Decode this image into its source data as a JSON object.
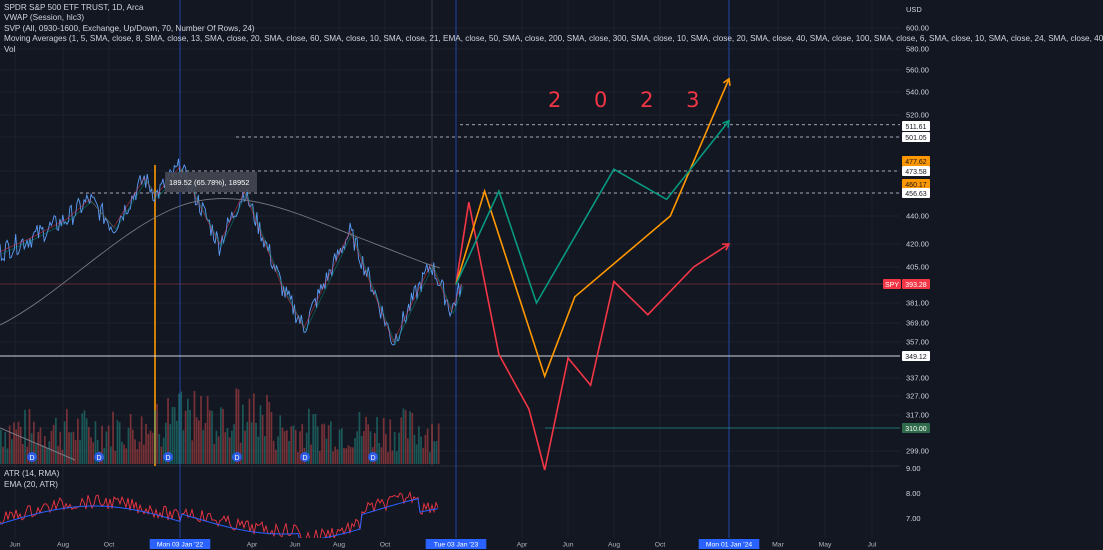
{
  "header": {
    "symbol_line": "SPDR S&P 500 ETF TRUST, 1D, Arca",
    "vwap_line": "VWAP (Session, hlc3)",
    "svp_line": "SVP (All, 0930-1600, Exchange, Up/Down, 70, Number Of Rows, 24)",
    "ma_line": "Moving Averages (1, 5, SMA, close, 8, SMA, close, 13, SMA, close, 20, SMA, close, 60, SMA, close, 10, SMA, close, 21, EMA, close, 50, SMA, close, 200, SMA, close, 300, SMA, close, 10, SMA, close, 20, SMA, close, 40, SMA, close, 100, SMA, close, 6, SMA, close, 10, SMA, close, 24, SMA, close, 40",
    "vol_line": "Vol"
  },
  "atr_legend": {
    "atr": "ATR (14, RMA)",
    "ema": "EMA (20, ATR)"
  },
  "annotation": {
    "year_text": "2 0 2 3"
  },
  "tooltip": {
    "text": "189.52 (65.78%), 18952"
  },
  "chart_data": {
    "type": "line",
    "title": "SPDR S&P 500 ETF TRUST, 1D, Arca",
    "currency": "USD",
    "price_ticks": [
      600,
      580,
      560,
      540,
      520,
      501.05,
      473.58,
      456.63,
      440,
      420,
      405,
      393.28,
      381,
      369,
      357,
      349.12,
      337,
      327,
      317,
      310,
      299
    ],
    "atr_ticks": [
      9.0,
      8.0,
      7.0
    ],
    "time_ticks": [
      "Jun",
      "Aug",
      "Oct",
      "Mon 03 Jan '22",
      "Apr",
      "Jun",
      "Aug",
      "Oct",
      "Tue 03 Jan '23",
      "Apr",
      "Jun",
      "Aug",
      "Oct",
      "Mon 01 Jan '24",
      "Mar",
      "May",
      "Jul"
    ],
    "price_badges": [
      {
        "label": "511.61",
        "color": "#ffffff"
      },
      {
        "label": "501.05",
        "color": "#ffffff"
      },
      {
        "label": "477.62",
        "color": "#ff9800"
      },
      {
        "label": "473.58",
        "color": "#ffffff"
      },
      {
        "label": "460.17",
        "color": "#ff9800"
      },
      {
        "label": "456.63",
        "color": "#ffffff"
      },
      {
        "label": "SPY",
        "color": "#f23645"
      },
      {
        "label": "393.28",
        "color": "#f23645"
      },
      {
        "label": "349.12",
        "color": "#ffffff"
      },
      {
        "label": "310.00",
        "color": "#2f6b4b"
      }
    ],
    "horizontal_levels": [
      511.61,
      501.05,
      473.58,
      456.63,
      349.12,
      310.0
    ],
    "price_history": [
      [
        "2021-05-01",
        415
      ],
      [
        "2021-06-15",
        425
      ],
      [
        "2021-08-01",
        438
      ],
      [
        "2021-09-01",
        452
      ],
      [
        "2021-10-04",
        432
      ],
      [
        "2021-11-15",
        468
      ],
      [
        "2021-12-01",
        455
      ],
      [
        "2022-01-03",
        477
      ],
      [
        "2022-02-24",
        420
      ],
      [
        "2022-03-29",
        458
      ],
      [
        "2022-05-20",
        389
      ],
      [
        "2022-06-16",
        366
      ],
      [
        "2022-08-16",
        429
      ],
      [
        "2022-10-12",
        357
      ],
      [
        "2022-12-01",
        407
      ],
      [
        "2022-12-28",
        376
      ],
      [
        "2023-01-10",
        393
      ]
    ],
    "projection_series": [
      {
        "color": "#f23645",
        "values": [
          [
            "2023-01-03",
            393
          ],
          [
            "2023-01-20",
            450
          ],
          [
            "2023-03-01",
            350
          ],
          [
            "2023-04-10",
            320
          ],
          [
            "2023-05-01",
            290
          ],
          [
            "2023-06-01",
            348
          ],
          [
            "2023-07-01",
            333
          ],
          [
            "2023-08-01",
            395
          ],
          [
            "2023-09-15",
            374
          ],
          [
            "2023-11-15",
            405
          ],
          [
            "2024-01-01",
            420
          ]
        ]
      },
      {
        "color": "#ff9800",
        "values": [
          [
            "2023-01-03",
            393
          ],
          [
            "2023-02-10",
            458
          ],
          [
            "2023-05-01",
            338
          ],
          [
            "2023-06-10",
            385
          ],
          [
            "2023-10-15",
            440
          ],
          [
            "2024-01-01",
            552
          ]
        ]
      },
      {
        "color": "#089981",
        "values": [
          [
            "2023-01-03",
            393
          ],
          [
            "2023-03-01",
            458
          ],
          [
            "2023-04-20",
            381
          ],
          [
            "2023-08-01",
            475
          ],
          [
            "2023-10-10",
            452
          ],
          [
            "2024-01-01",
            515
          ]
        ]
      }
    ],
    "ylim": [
      290,
      610
    ],
    "grid": true
  }
}
